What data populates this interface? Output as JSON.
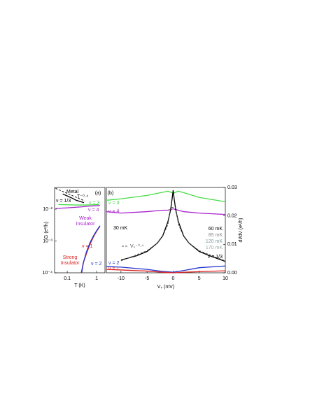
{
  "chart_data": [
    {
      "type": "line",
      "label": "(a)",
      "xlabel": "T (K)",
      "ylabel": "G (e²/h)",
      "xlog": true,
      "ylog": true,
      "xlim": [
        0.037,
        1.93
      ],
      "ylim": [
        0.0001,
        0.048
      ],
      "xticks": [
        0.1,
        1
      ],
      "yticks": [
        {
          "value": 0.0001,
          "label": "10⁻⁴"
        },
        {
          "value": 0.001,
          "label": "10⁻³"
        },
        {
          "value": 0.01,
          "label": "10⁻²"
        }
      ],
      "series": [
        {
          "name": "Metal",
          "color": "#000000",
          "dashed": true,
          "x": [
            0.04,
            0.4
          ],
          "values": [
            0.045,
            0.018
          ]
        },
        {
          "name": "ν = 1/3",
          "color": "#000000",
          "x": [
            0.07,
            0.1,
            0.15,
            0.2,
            0.3,
            0.37
          ],
          "values": [
            0.03,
            0.026,
            0.022,
            0.019,
            0.017,
            0.016
          ]
        },
        {
          "name": "ν = 3",
          "color": "#44dd44",
          "x": [
            0.05,
            0.2,
            0.5,
            1.2
          ],
          "values": [
            0.014,
            0.0135,
            0.0135,
            0.014
          ]
        },
        {
          "name": "ν = 4",
          "color": "#aa22cc",
          "x": [
            0.04,
            0.1,
            0.3,
            0.6,
            1.3
          ],
          "values": [
            0.0105,
            0.011,
            0.0118,
            0.0125,
            0.013
          ]
        },
        {
          "name": "ν = 1",
          "color": "#dd2222",
          "x": [
            0.3,
            0.35,
            0.45,
            0.6,
            0.8,
            1.0,
            1.3
          ],
          "values": [
            0.0001,
            0.0002,
            0.0004,
            0.0008,
            0.0014,
            0.002,
            0.0029
          ]
        },
        {
          "name": "ν = 2",
          "color": "#2233cc",
          "x": [
            0.31,
            0.36,
            0.45,
            0.6,
            0.8,
            1.0,
            1.3
          ],
          "values": [
            0.0001,
            0.00022,
            0.00045,
            0.0009,
            0.0015,
            0.0021,
            0.003
          ]
        }
      ],
      "annotations": [
        {
          "text": "T⁻⁰·⁴",
          "color": "#000000"
        },
        {
          "text": "Weak",
          "color": "#aa22cc"
        },
        {
          "text": "Insulator",
          "color": "#aa22cc"
        },
        {
          "text": "Strong",
          "color": "#dd2222"
        },
        {
          "text": "Insulator",
          "color": "#dd2222"
        }
      ]
    },
    {
      "type": "line",
      "label": "(b)",
      "xlabel": "Vₛ (mV)",
      "ylabel": "dI/dV (e²/h)",
      "xlim": [
        -12.8,
        10
      ],
      "ylim": [
        0,
        0.03
      ],
      "xticks": [
        -10,
        -5,
        0,
        5,
        10
      ],
      "yticks": [
        {
          "value": 0,
          "label": "0.00"
        },
        {
          "value": 0.01,
          "label": "0.01"
        },
        {
          "value": 0.02,
          "label": "0.02"
        },
        {
          "value": 0.03,
          "label": "0.03"
        }
      ],
      "series": [
        {
          "name": "ν = 3",
          "color": "#44dd44",
          "x": [
            -12.8,
            -10,
            -5,
            -2,
            -1,
            0,
            1,
            2,
            5,
            10
          ],
          "values": [
            0.0255,
            0.026,
            0.0272,
            0.0283,
            0.0287,
            0.028,
            0.0287,
            0.0282,
            0.0265,
            0.025
          ]
        },
        {
          "name": "ν = 4",
          "color": "#aa22cc",
          "x": [
            -12.8,
            -10,
            -5,
            -2,
            -1,
            0,
            1,
            2,
            5,
            10
          ],
          "values": [
            0.0215,
            0.021,
            0.0215,
            0.022,
            0.022,
            0.0225,
            0.022,
            0.0215,
            0.021,
            0.0205
          ]
        },
        {
          "name": "ν = 1/3",
          "color": "#000000",
          "x": [
            -10,
            -7,
            -5,
            -3,
            -2,
            -1,
            -0.5,
            -0.2,
            0,
            0.2,
            0.5,
            1,
            2,
            3,
            5,
            7,
            10
          ],
          "values": [
            0.0045,
            0.006,
            0.0075,
            0.0105,
            0.013,
            0.018,
            0.022,
            0.026,
            0.029,
            0.026,
            0.022,
            0.018,
            0.013,
            0.0105,
            0.0075,
            0.006,
            0.004
          ]
        },
        {
          "name": "Vₛ⁻⁰·⁴",
          "color": "#555555",
          "dashed": true,
          "x": [
            -10,
            -5,
            -3,
            -2,
            -1,
            -0.5,
            0.5,
            1,
            2,
            3,
            5,
            10
          ],
          "values": [
            0.0042,
            0.0078,
            0.0105,
            0.0128,
            0.017,
            0.023,
            0.023,
            0.017,
            0.0128,
            0.0105,
            0.0078,
            0.0042
          ]
        },
        {
          "name": "ν = 2",
          "color": "#2233cc",
          "x": [
            -12.8,
            -10,
            -5,
            -2,
            0,
            2,
            5,
            10
          ],
          "values": [
            0.0022,
            0.002,
            0.0012,
            0.0005,
            0.0002,
            0.0008,
            0.0018,
            0.0024
          ]
        },
        {
          "name": "ν = 1",
          "color": "#dd2222",
          "x": [
            -12.8,
            -10,
            -5,
            -2,
            0,
            2,
            5,
            10
          ],
          "values": [
            0.0012,
            0.001,
            0.0006,
            0.0002,
            0,
            0.0002,
            0.0004,
            0.0007
          ]
        }
      ],
      "annotations": [
        {
          "text": "30 mK",
          "color": "#000000"
        },
        {
          "text": "60 mK",
          "color": "#000000"
        },
        {
          "text": "85 mK",
          "color": "#888888"
        },
        {
          "text": "120 mK",
          "color": "#779999"
        },
        {
          "text": "170 mK",
          "color": "#99aaaa"
        }
      ]
    }
  ]
}
